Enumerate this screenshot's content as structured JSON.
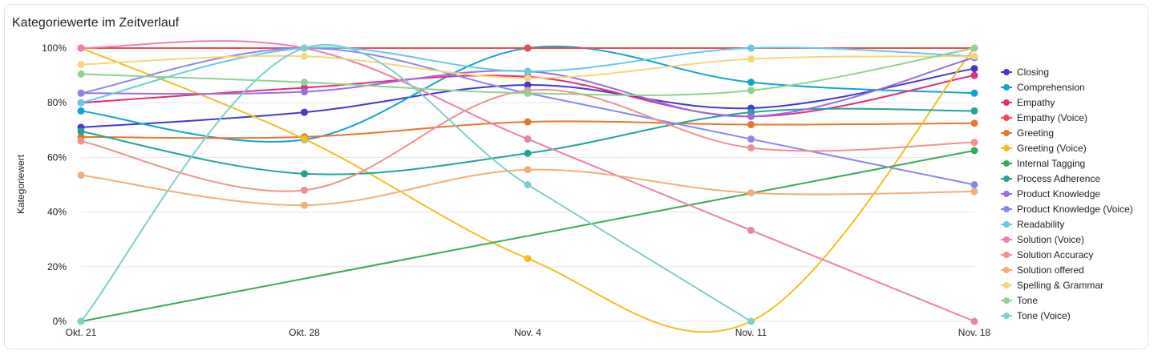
{
  "title": "Kategoriewerte im Zeitverlauf",
  "chart_data": {
    "type": "line",
    "title": "Kategoriewerte im Zeitverlauf",
    "xlabel": "",
    "ylabel": "Kategoriewert",
    "categories": [
      "Okt. 21",
      "Okt. 28",
      "Nov. 4",
      "Nov. 11",
      "Nov. 18"
    ],
    "ylim": [
      0,
      100
    ],
    "yticks": [
      "0%",
      "20%",
      "40%",
      "60%",
      "80%",
      "100%"
    ],
    "grid": true,
    "legend_position": "right",
    "series": [
      {
        "name": "Closing",
        "color": "#4338d4",
        "values": [
          71,
          76.5,
          86.5,
          78,
          92.5
        ]
      },
      {
        "name": "Comprehension",
        "color": "#12a3d4",
        "values": [
          77,
          66.5,
          100,
          87.5,
          83.5
        ]
      },
      {
        "name": "Empathy",
        "color": "#e0307a",
        "values": [
          80,
          85.5,
          89.5,
          75,
          90
        ]
      },
      {
        "name": "Empathy (Voice)",
        "color": "#ef4a55",
        "values": [
          100,
          100,
          100,
          100,
          100
        ]
      },
      {
        "name": "Greeting",
        "color": "#e8762a",
        "values": [
          67.5,
          67.5,
          73,
          72,
          72.5
        ]
      },
      {
        "name": "Greeting (Voice)",
        "color": "#f0c020",
        "values": [
          100,
          66.7,
          23,
          0,
          100
        ]
      },
      {
        "name": "Internal Tagging",
        "color": "#3aaa55",
        "values": [
          0,
          null,
          null,
          null,
          62.5
        ]
      },
      {
        "name": "Process Adherence",
        "color": "#22a49b",
        "values": [
          69.5,
          54,
          61.5,
          76.5,
          77
        ]
      },
      {
        "name": "Product Knowledge",
        "color": "#9a6ee0",
        "values": [
          83.5,
          84,
          91.5,
          75,
          96.5
        ]
      },
      {
        "name": "Product Knowledge (Voice)",
        "color": "#8a86f0",
        "values": [
          83.5,
          100,
          83.5,
          66.7,
          50
        ]
      },
      {
        "name": "Readability",
        "color": "#66c8e6",
        "values": [
          80,
          100,
          91.5,
          100,
          97
        ]
      },
      {
        "name": "Solution (Voice)",
        "color": "#ec80ad",
        "values": [
          100,
          100,
          66.7,
          33.3,
          0
        ]
      },
      {
        "name": "Solution Accuracy",
        "color": "#f0918f",
        "values": [
          66,
          48,
          84.5,
          63.5,
          65.5
        ]
      },
      {
        "name": "Solution offered",
        "color": "#f2ae7a",
        "values": [
          53.5,
          42.5,
          55.5,
          47,
          47.5
        ]
      },
      {
        "name": "Spelling & Grammar",
        "color": "#f4d77a",
        "values": [
          94,
          97,
          89,
          96,
          97
        ]
      },
      {
        "name": "Tone",
        "color": "#8fd28f",
        "values": [
          90.5,
          87.5,
          83.5,
          84.5,
          100
        ]
      },
      {
        "name": "Tone (Voice)",
        "color": "#7fcfcc",
        "values": [
          0,
          100,
          50,
          0,
          null
        ]
      }
    ]
  }
}
